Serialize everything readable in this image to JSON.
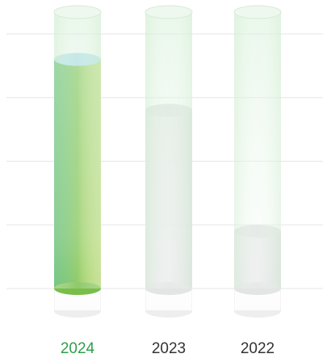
{
  "chart_data": {
    "type": "cylinder",
    "categories": [
      "2024",
      "2023",
      "2022"
    ],
    "values": [
      3.6,
      2.8,
      0.9
    ],
    "colors": [
      "#3bb14a",
      "#d9dbdc",
      "#d9dbdc"
    ],
    "label_colors": [
      "#2e9e4a",
      "#333333",
      "#333333"
    ],
    "ylim": [
      0,
      4
    ],
    "yticks": [
      0,
      1,
      2,
      3,
      4
    ],
    "grid": true
  }
}
